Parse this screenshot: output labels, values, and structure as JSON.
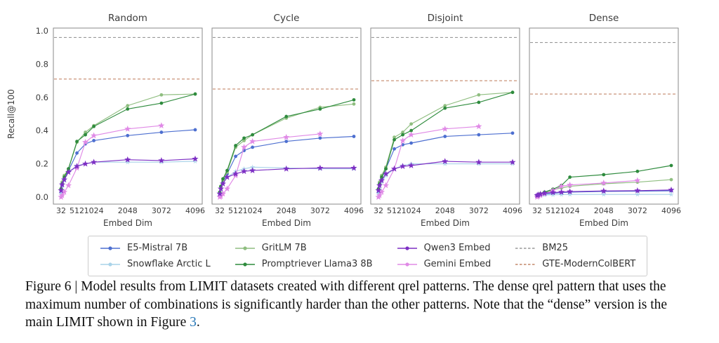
{
  "figure": {
    "ylabel": "Recall@100",
    "xlabel": "Embed Dim",
    "panel_titles": [
      "Random",
      "Cycle",
      "Disjoint",
      "Dense"
    ]
  },
  "chart_data": [
    {
      "type": "line",
      "title": "Random",
      "xlabel": "Embed Dim",
      "ylabel": "Recall@100",
      "xticks": [
        32,
        512,
        1024,
        2048,
        3072,
        4096
      ],
      "yticks": [
        0.0,
        0.2,
        0.4,
        0.6,
        0.8,
        1.0
      ],
      "xlim": [
        32,
        4096
      ],
      "ylim": [
        0.0,
        1.02
      ],
      "grid": false,
      "hlines": [
        {
          "name": "BM25",
          "y": 0.96,
          "color": "#999999"
        },
        {
          "name": "GTE-ModernColBERT",
          "y": 0.71,
          "color": "#c4876a"
        }
      ],
      "series": [
        {
          "name": "E5-Mistral 7B",
          "color": "#4d6fd0",
          "marker": "circle",
          "x": [
            32,
            64,
            128,
            256,
            512,
            768,
            1024,
            2048,
            3072,
            4096
          ],
          "y": [
            0.03,
            0.07,
            0.11,
            0.16,
            0.265,
            0.32,
            0.34,
            0.37,
            0.39,
            0.405
          ]
        },
        {
          "name": "Snowflake Arctic L",
          "color": "#a9d3e9",
          "marker": "star",
          "x": [
            32,
            64,
            128,
            256,
            512,
            768,
            1024,
            2048,
            3072,
            4096
          ],
          "y": [
            0.02,
            0.06,
            0.1,
            0.15,
            0.19,
            0.2,
            0.21,
            0.21,
            0.21,
            0.215
          ]
        },
        {
          "name": "GritLM 7B",
          "color": "#8fbe80",
          "marker": "circle",
          "x": [
            32,
            64,
            128,
            256,
            512,
            768,
            1024,
            2048,
            3072,
            4096
          ],
          "y": [
            0.05,
            0.09,
            0.13,
            0.17,
            0.33,
            0.39,
            0.43,
            0.55,
            0.615,
            0.62
          ]
        },
        {
          "name": "Promptriever Llama3 8B",
          "color": "#2e8b3d",
          "marker": "circle",
          "x": [
            32,
            64,
            128,
            256,
            512,
            768,
            1024,
            2048,
            3072,
            4096
          ],
          "y": [
            0.05,
            0.08,
            0.12,
            0.17,
            0.335,
            0.375,
            0.425,
            0.53,
            0.565,
            0.62
          ]
        },
        {
          "name": "Gemini Embed",
          "color": "#e08ae6",
          "marker": "star",
          "x": [
            32,
            64,
            128,
            256,
            512,
            768,
            1024,
            2048,
            3072
          ],
          "y": [
            0.0,
            0.01,
            0.03,
            0.07,
            0.175,
            0.33,
            0.37,
            0.41,
            0.43
          ]
        },
        {
          "name": "Qwen3 Embed",
          "color": "#7d2fc4",
          "marker": "star",
          "x": [
            32,
            64,
            128,
            256,
            512,
            768,
            1024,
            2048,
            3072,
            4096
          ],
          "y": [
            0.04,
            0.075,
            0.105,
            0.15,
            0.185,
            0.2,
            0.21,
            0.225,
            0.22,
            0.23
          ]
        }
      ]
    },
    {
      "type": "line",
      "title": "Cycle",
      "xlabel": "Embed Dim",
      "ylabel": "",
      "xticks": [
        32,
        512,
        1024,
        2048,
        3072,
        4096
      ],
      "yticks": [
        0.0,
        0.2,
        0.4,
        0.6,
        0.8,
        1.0
      ],
      "xlim": [
        32,
        4096
      ],
      "ylim": [
        0.0,
        1.02
      ],
      "grid": false,
      "hlines": [
        {
          "name": "BM25",
          "y": 0.96,
          "color": "#999999"
        },
        {
          "name": "GTE-ModernColBERT",
          "y": 0.65,
          "color": "#c4876a"
        }
      ],
      "series": [
        {
          "name": "E5-Mistral 7B",
          "color": "#4d6fd0",
          "marker": "circle",
          "x": [
            32,
            64,
            128,
            256,
            512,
            768,
            1024,
            2048,
            3072,
            4096
          ],
          "y": [
            0.02,
            0.05,
            0.09,
            0.14,
            0.245,
            0.28,
            0.3,
            0.335,
            0.355,
            0.365
          ]
        },
        {
          "name": "Snowflake Arctic L",
          "color": "#a9d3e9",
          "marker": "star",
          "x": [
            32,
            64,
            128,
            256,
            512,
            768,
            1024,
            2048,
            3072,
            4096
          ],
          "y": [
            0.015,
            0.045,
            0.08,
            0.12,
            0.155,
            0.17,
            0.18,
            0.175,
            0.17,
            0.17
          ]
        },
        {
          "name": "GritLM 7B",
          "color": "#8fbe80",
          "marker": "circle",
          "x": [
            32,
            64,
            128,
            256,
            512,
            768,
            1024,
            2048,
            3072,
            4096
          ],
          "y": [
            0.03,
            0.06,
            0.1,
            0.15,
            0.3,
            0.34,
            0.375,
            0.475,
            0.54,
            0.56
          ]
        },
        {
          "name": "Promptriever Llama3 8B",
          "color": "#2e8b3d",
          "marker": "circle",
          "x": [
            32,
            64,
            128,
            256,
            512,
            768,
            1024,
            2048,
            3072,
            4096
          ],
          "y": [
            0.03,
            0.065,
            0.11,
            0.16,
            0.31,
            0.355,
            0.375,
            0.485,
            0.53,
            0.585
          ]
        },
        {
          "name": "Gemini Embed",
          "color": "#e08ae6",
          "marker": "star",
          "x": [
            32,
            64,
            128,
            256,
            512,
            768,
            1024,
            2048,
            3072
          ],
          "y": [
            0.0,
            0.005,
            0.02,
            0.05,
            0.13,
            0.3,
            0.335,
            0.36,
            0.38
          ]
        },
        {
          "name": "Qwen3 Embed",
          "color": "#7d2fc4",
          "marker": "star",
          "x": [
            32,
            64,
            128,
            256,
            512,
            768,
            1024,
            2048,
            3072,
            4096
          ],
          "y": [
            0.02,
            0.05,
            0.08,
            0.12,
            0.14,
            0.155,
            0.16,
            0.17,
            0.175,
            0.175
          ]
        }
      ]
    },
    {
      "type": "line",
      "title": "Disjoint",
      "xlabel": "Embed Dim",
      "ylabel": "",
      "xticks": [
        32,
        512,
        1024,
        2048,
        3072,
        4096
      ],
      "yticks": [
        0.0,
        0.2,
        0.4,
        0.6,
        0.8,
        1.0
      ],
      "xlim": [
        32,
        4096
      ],
      "ylim": [
        0.0,
        1.02
      ],
      "grid": false,
      "hlines": [
        {
          "name": "BM25",
          "y": 0.96,
          "color": "#999999"
        },
        {
          "name": "GTE-ModernColBERT",
          "y": 0.7,
          "color": "#c4876a"
        }
      ],
      "series": [
        {
          "name": "E5-Mistral 7B",
          "color": "#4d6fd0",
          "marker": "circle",
          "x": [
            32,
            64,
            128,
            256,
            512,
            768,
            1024,
            2048,
            3072,
            4096
          ],
          "y": [
            0.03,
            0.07,
            0.11,
            0.17,
            0.29,
            0.315,
            0.325,
            0.365,
            0.375,
            0.385
          ]
        },
        {
          "name": "Snowflake Arctic L",
          "color": "#a9d3e9",
          "marker": "star",
          "x": [
            32,
            64,
            128,
            256,
            512,
            768,
            1024,
            2048,
            3072,
            4096
          ],
          "y": [
            0.02,
            0.05,
            0.09,
            0.13,
            0.17,
            0.19,
            0.2,
            0.2,
            0.2,
            0.2
          ]
        },
        {
          "name": "GritLM 7B",
          "color": "#8fbe80",
          "marker": "circle",
          "x": [
            32,
            64,
            128,
            256,
            512,
            768,
            1024,
            2048,
            3072,
            4096
          ],
          "y": [
            0.05,
            0.09,
            0.13,
            0.18,
            0.36,
            0.39,
            0.44,
            0.55,
            0.615,
            0.63
          ]
        },
        {
          "name": "Promptriever Llama3 8B",
          "color": "#2e8b3d",
          "marker": "circle",
          "x": [
            32,
            64,
            128,
            256,
            512,
            768,
            1024,
            2048,
            3072,
            4096
          ],
          "y": [
            0.05,
            0.08,
            0.12,
            0.17,
            0.345,
            0.375,
            0.4,
            0.535,
            0.57,
            0.63
          ]
        },
        {
          "name": "Gemini Embed",
          "color": "#e08ae6",
          "marker": "star",
          "x": [
            32,
            64,
            128,
            256,
            512,
            768,
            1024,
            2048,
            3072
          ],
          "y": [
            0.0,
            0.01,
            0.03,
            0.07,
            0.17,
            0.34,
            0.375,
            0.41,
            0.425
          ]
        },
        {
          "name": "Qwen3 Embed",
          "color": "#7d2fc4",
          "marker": "star",
          "x": [
            32,
            64,
            128,
            256,
            512,
            768,
            1024,
            2048,
            3072,
            4096
          ],
          "y": [
            0.04,
            0.07,
            0.1,
            0.14,
            0.17,
            0.185,
            0.19,
            0.215,
            0.21,
            0.21
          ]
        }
      ]
    },
    {
      "type": "line",
      "title": "Dense",
      "xlabel": "Embed Dim",
      "ylabel": "",
      "xticks": [
        32,
        512,
        1024,
        2048,
        3072,
        4096
      ],
      "yticks": [
        0.0,
        0.2,
        0.4,
        0.6,
        0.8,
        1.0
      ],
      "xlim": [
        32,
        4096
      ],
      "ylim": [
        0.0,
        1.02
      ],
      "grid": false,
      "hlines": [
        {
          "name": "BM25",
          "y": 0.93,
          "color": "#999999"
        },
        {
          "name": "GTE-ModernColBERT",
          "y": 0.62,
          "color": "#c4876a"
        }
      ],
      "series": [
        {
          "name": "E5-Mistral 7B",
          "color": "#4d6fd0",
          "marker": "circle",
          "x": [
            32,
            64,
            128,
            256,
            512,
            768,
            1024,
            2048,
            3072,
            4096
          ],
          "y": [
            0.005,
            0.008,
            0.012,
            0.018,
            0.022,
            0.027,
            0.03,
            0.034,
            0.036,
            0.038
          ]
        },
        {
          "name": "Snowflake Arctic L",
          "color": "#a9d3e9",
          "marker": "star",
          "x": [
            32,
            64,
            128,
            256,
            512,
            768,
            1024,
            2048,
            3072,
            4096
          ],
          "y": [
            0.004,
            0.006,
            0.009,
            0.012,
            0.014,
            0.015,
            0.016,
            0.016,
            0.016,
            0.016
          ]
        },
        {
          "name": "GritLM 7B",
          "color": "#8fbe80",
          "marker": "circle",
          "x": [
            32,
            64,
            128,
            256,
            512,
            768,
            1024,
            2048,
            3072,
            4096
          ],
          "y": [
            0.005,
            0.01,
            0.015,
            0.025,
            0.045,
            0.055,
            0.065,
            0.08,
            0.09,
            0.105
          ]
        },
        {
          "name": "Promptriever Llama3 8B",
          "color": "#2e8b3d",
          "marker": "circle",
          "x": [
            32,
            64,
            128,
            256,
            512,
            768,
            1024,
            2048,
            3072,
            4096
          ],
          "y": [
            0.005,
            0.012,
            0.02,
            0.03,
            0.048,
            0.07,
            0.12,
            0.135,
            0.155,
            0.19
          ]
        },
        {
          "name": "Gemini Embed",
          "color": "#e08ae6",
          "marker": "star",
          "x": [
            32,
            64,
            128,
            256,
            512,
            768,
            1024,
            2048,
            3072
          ],
          "y": [
            0.0,
            0.005,
            0.01,
            0.02,
            0.04,
            0.065,
            0.073,
            0.085,
            0.1
          ]
        },
        {
          "name": "Qwen3 Embed",
          "color": "#7d2fc4",
          "marker": "star",
          "x": [
            32,
            64,
            128,
            256,
            512,
            768,
            1024,
            2048,
            3072,
            4096
          ],
          "y": [
            0.01,
            0.014,
            0.018,
            0.024,
            0.028,
            0.03,
            0.033,
            0.037,
            0.039,
            0.043
          ]
        }
      ]
    }
  ],
  "legend": {
    "items": [
      {
        "label": "E5-Mistral 7B",
        "color": "#4d6fd0",
        "marker": "circle",
        "dashed": false
      },
      {
        "label": "Snowflake Arctic L",
        "color": "#a9d3e9",
        "marker": "circle",
        "dashed": false
      },
      {
        "label": "GritLM 7B",
        "color": "#8fbe80",
        "marker": "circle",
        "dashed": false
      },
      {
        "label": "Promptriever Llama3 8B",
        "color": "#2e8b3d",
        "marker": "circle",
        "dashed": false
      },
      {
        "label": "Qwen3 Embed",
        "color": "#7d2fc4",
        "marker": "circle",
        "dashed": false
      },
      {
        "label": "Gemini Embed",
        "color": "#e08ae6",
        "marker": "circle",
        "dashed": false
      },
      {
        "label": "BM25",
        "color": "#999999",
        "marker": "none",
        "dashed": true
      },
      {
        "label": "GTE-ModernColBERT",
        "color": "#c4876a",
        "marker": "none",
        "dashed": true
      }
    ]
  },
  "caption": {
    "before_link": "Figure 6 | Model results from LIMIT datasets created with different qrel patterns. The dense qrel pattern that uses the maximum number of combinations is significantly harder than the other patterns. Note that the “dense” version is the main LIMIT shown in Figure ",
    "link_text": "3",
    "after_link": "."
  }
}
